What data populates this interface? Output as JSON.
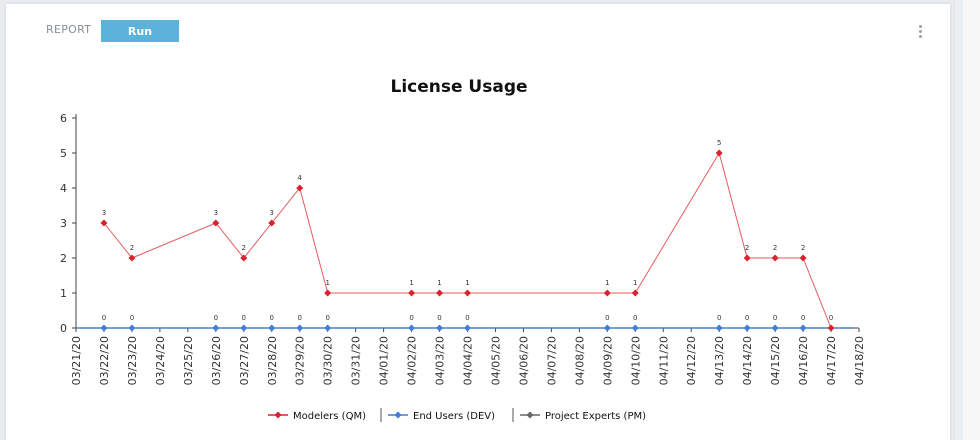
{
  "toolbar": {
    "report_label": "REPORT",
    "run_label": "Run",
    "menu_icon": "kebab-menu-icon"
  },
  "colors": {
    "modelers": "#d9232d",
    "end_users": "#3f7fd6",
    "project_experts": "#5f6b6e",
    "run_button": "#5bb3d9"
  },
  "chart_data": {
    "type": "line",
    "title": "License Usage",
    "xlabel": "",
    "ylabel": "",
    "ylim": [
      0,
      6
    ],
    "yticks": [
      "0",
      "1",
      "2",
      "3",
      "4",
      "5",
      "6"
    ],
    "x_range": [
      "03/21/20",
      "04/18/20"
    ],
    "x_ticks": [
      "03/21/20",
      "03/22/20",
      "03/23/20",
      "03/24/20",
      "03/25/20",
      "03/26/20",
      "03/27/20",
      "03/28/20",
      "03/29/20",
      "03/30/20",
      "03/31/20",
      "04/01/20",
      "04/02/20",
      "04/03/20",
      "04/04/20",
      "04/05/20",
      "04/06/20",
      "04/07/20",
      "04/08/20",
      "04/09/20",
      "04/10/20",
      "04/11/20",
      "04/12/20",
      "04/13/20",
      "04/14/20",
      "04/15/20",
      "04/16/20",
      "04/17/20",
      "04/18/20"
    ],
    "grid": false,
    "legend_position": "bottom-center",
    "series": [
      {
        "name": "Modelers (QM)",
        "color": "#d9232d",
        "marker": "diamond",
        "x": [
          "03/22/20",
          "03/23/20",
          "03/26/20",
          "03/27/20",
          "03/28/20",
          "03/29/20",
          "03/30/20",
          "04/02/20",
          "04/03/20",
          "04/04/20",
          "04/09/20",
          "04/10/20",
          "04/13/20",
          "04/14/20",
          "04/15/20",
          "04/16/20",
          "04/17/20"
        ],
        "values": [
          3,
          2,
          3,
          2,
          3,
          4,
          1,
          1,
          1,
          1,
          1,
          1,
          5,
          2,
          2,
          2,
          0
        ],
        "labels": [
          "3",
          "2",
          "3",
          "2",
          "3",
          "4",
          "1",
          "1",
          "1",
          "1",
          "1",
          "1",
          "5",
          "2",
          "2",
          "2",
          "0"
        ]
      },
      {
        "name": "End Users (DEV)",
        "color": "#3f7fd6",
        "marker": "diamond",
        "x": [
          "03/22/20",
          "03/23/20",
          "03/26/20",
          "03/27/20",
          "03/28/20",
          "03/29/20",
          "03/30/20",
          "04/02/20",
          "04/03/20",
          "04/04/20",
          "04/09/20",
          "04/10/20",
          "04/13/20",
          "04/14/20",
          "04/15/20",
          "04/16/20"
        ],
        "values": [
          0,
          0,
          0,
          0,
          0,
          0,
          0,
          0,
          0,
          0,
          0,
          0,
          0,
          0,
          0,
          0
        ],
        "labels": [
          "0",
          "0",
          "0",
          "0",
          "0",
          "0",
          "0",
          "0",
          "0",
          "0",
          "0",
          "0",
          "0",
          "0",
          "0",
          "0"
        ]
      },
      {
        "name": "Project Experts (PM)",
        "color": "#5f6b6e",
        "marker": "diamond",
        "x": [],
        "values": [],
        "labels": []
      }
    ]
  }
}
